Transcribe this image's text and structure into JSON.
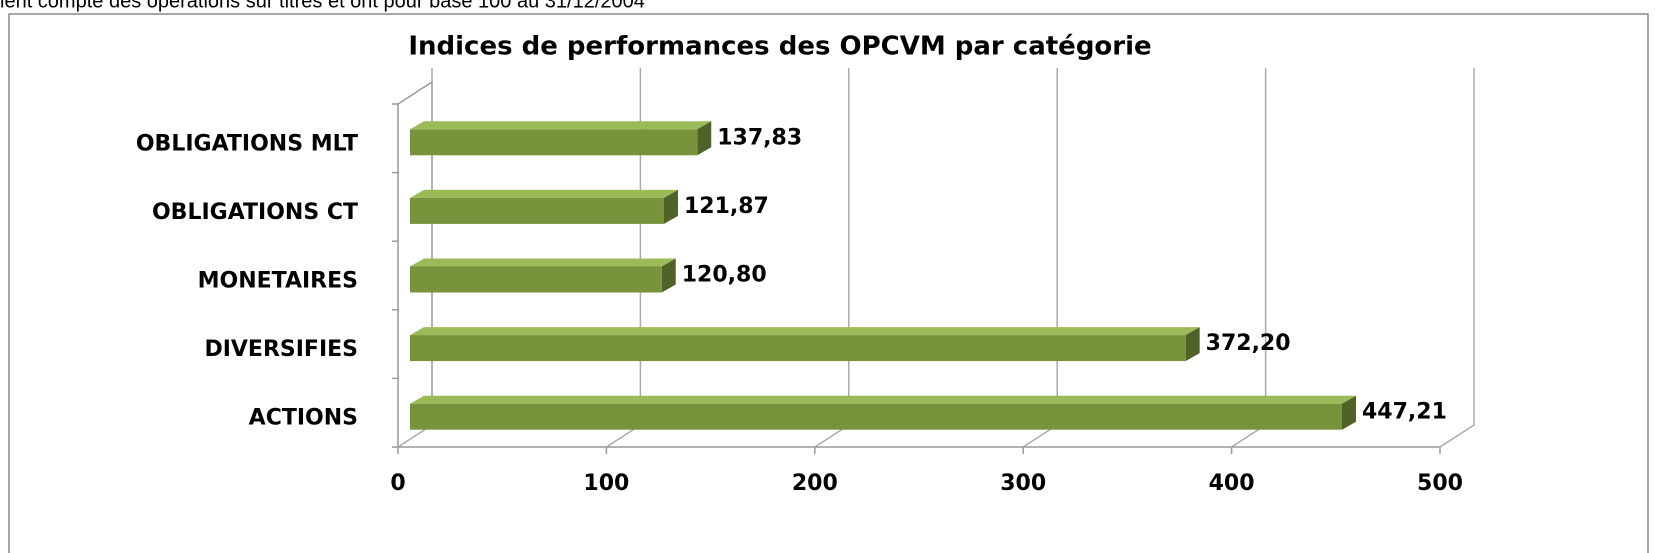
{
  "chart_data": {
    "type": "bar",
    "orientation": "horizontal",
    "caption": "ient compte des opérations sur titres et ont pour base 100 au 31/12/2004",
    "title": "Indices de performances des OPCVM par catégorie",
    "categories": [
      "ACTIONS",
      "DIVERSIFIES",
      "MONETAIRES",
      "OBLIGATIONS CT",
      "OBLIGATIONS MLT"
    ],
    "values": [
      447.21,
      372.2,
      120.8,
      121.87,
      137.83
    ],
    "value_labels": [
      "447,21",
      "372,20",
      "120,80",
      "121,87",
      "137,83"
    ],
    "color": "#77933c",
    "xlim": [
      0,
      500
    ],
    "xticks": [
      0,
      100,
      200,
      300,
      400,
      500
    ],
    "grid": true
  }
}
